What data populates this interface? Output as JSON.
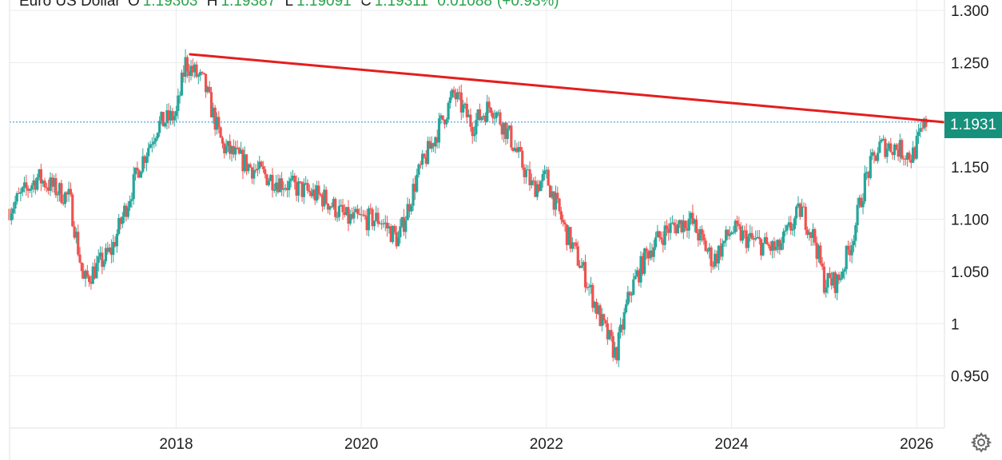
{
  "header": {
    "title": "Euro US Dollar",
    "open_label": "O",
    "open_value": "1.19303",
    "high_label": "H",
    "high_value": "1.19387",
    "low_label": "L",
    "low_value": "1.19091",
    "close_label": "C",
    "close_value": "1.19311",
    "change_value": "0.01088",
    "change_pct": "(+0.93%)"
  },
  "last_price_tag": "1.1931",
  "colors": {
    "up": "#26a69a",
    "down": "#ef5350",
    "trendline": "#e41e1e",
    "price_line": "#2a8fd0",
    "tag_bg": "#17907c",
    "grid": "#ececec"
  },
  "icons": {
    "settings": "gear-icon"
  },
  "chart_data": {
    "type": "candlestick",
    "series_name": "Euro US Dollar",
    "x_ticks": [
      "2018",
      "2020",
      "2022",
      "2024",
      "2026"
    ],
    "y_ticks": [
      {
        "value": 0.95,
        "label": "0.950"
      },
      {
        "value": 1.0,
        "label": "1"
      },
      {
        "value": 1.05,
        "label": "1.050"
      },
      {
        "value": 1.1,
        "label": "1.100"
      },
      {
        "value": 1.15,
        "label": "1.150"
      },
      {
        "value": 1.25,
        "label": "1.250"
      },
      {
        "value": 1.3,
        "label": "1.300"
      }
    ],
    "ylim": [
      0.9,
      1.31
    ],
    "xlim": [
      2016.2,
      2026.3
    ],
    "last_price": 1.1931,
    "grid": true,
    "trendline": {
      "x1": 2018.15,
      "y1": 1.258,
      "x2": 2026.3,
      "y2": 1.193
    },
    "keypoints": [
      [
        2016.2,
        1.11
      ],
      [
        2016.5,
        1.14
      ],
      [
        2016.85,
        1.12
      ],
      [
        2017.0,
        1.04
      ],
      [
        2017.3,
        1.07
      ],
      [
        2017.6,
        1.15
      ],
      [
        2017.8,
        1.19
      ],
      [
        2018.0,
        1.2
      ],
      [
        2018.1,
        1.25
      ],
      [
        2018.3,
        1.23
      ],
      [
        2018.5,
        1.17
      ],
      [
        2018.8,
        1.15
      ],
      [
        2019.0,
        1.14
      ],
      [
        2019.3,
        1.13
      ],
      [
        2019.6,
        1.12
      ],
      [
        2019.85,
        1.1
      ],
      [
        2020.2,
        1.1
      ],
      [
        2020.4,
        1.08
      ],
      [
        2020.6,
        1.14
      ],
      [
        2020.8,
        1.18
      ],
      [
        2021.0,
        1.22
      ],
      [
        2021.2,
        1.19
      ],
      [
        2021.4,
        1.21
      ],
      [
        2021.6,
        1.18
      ],
      [
        2021.85,
        1.13
      ],
      [
        2022.0,
        1.14
      ],
      [
        2022.2,
        1.09
      ],
      [
        2022.4,
        1.05
      ],
      [
        2022.6,
        1.0
      ],
      [
        2022.75,
        0.97
      ],
      [
        2022.9,
        1.03
      ],
      [
        2023.1,
        1.07
      ],
      [
        2023.3,
        1.09
      ],
      [
        2023.55,
        1.1
      ],
      [
        2023.8,
        1.06
      ],
      [
        2024.0,
        1.09
      ],
      [
        2024.2,
        1.08
      ],
      [
        2024.5,
        1.07
      ],
      [
        2024.75,
        1.11
      ],
      [
        2024.9,
        1.08
      ],
      [
        2025.0,
        1.04
      ],
      [
        2025.15,
        1.04
      ],
      [
        2025.3,
        1.08
      ],
      [
        2025.45,
        1.14
      ],
      [
        2025.6,
        1.17
      ],
      [
        2025.75,
        1.17
      ],
      [
        2025.95,
        1.16
      ],
      [
        2026.1,
        1.193
      ]
    ]
  }
}
